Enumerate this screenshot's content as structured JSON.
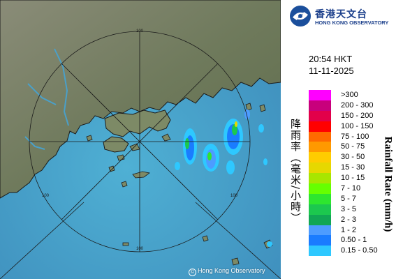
{
  "logo": {
    "name_zh": "香港天文台",
    "name_en": "HONG KONG OBSERVATORY"
  },
  "time": "20:54 HKT",
  "date": "11-11-2025",
  "map": {
    "range_ring_label": "100",
    "copyright": "Hong Kong Observatory",
    "colors": {
      "sea": "#4aa0c9",
      "land": "#6e7a5a",
      "range_ring": "#1a1a1a"
    }
  },
  "legend": {
    "title_zh": "降雨率（毫米/小時）",
    "title_en": "Rainfall Rate (mm/h)",
    "items": [
      {
        "label": ">300",
        "color": "#ff00ff"
      },
      {
        "label": "200 - 300",
        "color": "#c8007c"
      },
      {
        "label": "150 - 200",
        "color": "#e2004a"
      },
      {
        "label": "100 - 150",
        "color": "#ff0000"
      },
      {
        "label": "75 - 100",
        "color": "#ff6a00"
      },
      {
        "label": "50 - 75",
        "color": "#ff9900"
      },
      {
        "label": "30 - 50",
        "color": "#ffcc00"
      },
      {
        "label": "15 - 30",
        "color": "#e6d800"
      },
      {
        "label": "10 - 15",
        "color": "#a8e600"
      },
      {
        "label": "7 - 10",
        "color": "#66ff00"
      },
      {
        "label": "5 - 7",
        "color": "#2ee62e"
      },
      {
        "label": "3 - 5",
        "color": "#1cc84e"
      },
      {
        "label": "2 - 3",
        "color": "#11a654"
      },
      {
        "label": "1 - 2",
        "color": "#4d9cff"
      },
      {
        "label": "0.50 - 1",
        "color": "#1a7cff"
      },
      {
        "label": "0.15 - 0.50",
        "color": "#2ec8ff"
      }
    ]
  }
}
